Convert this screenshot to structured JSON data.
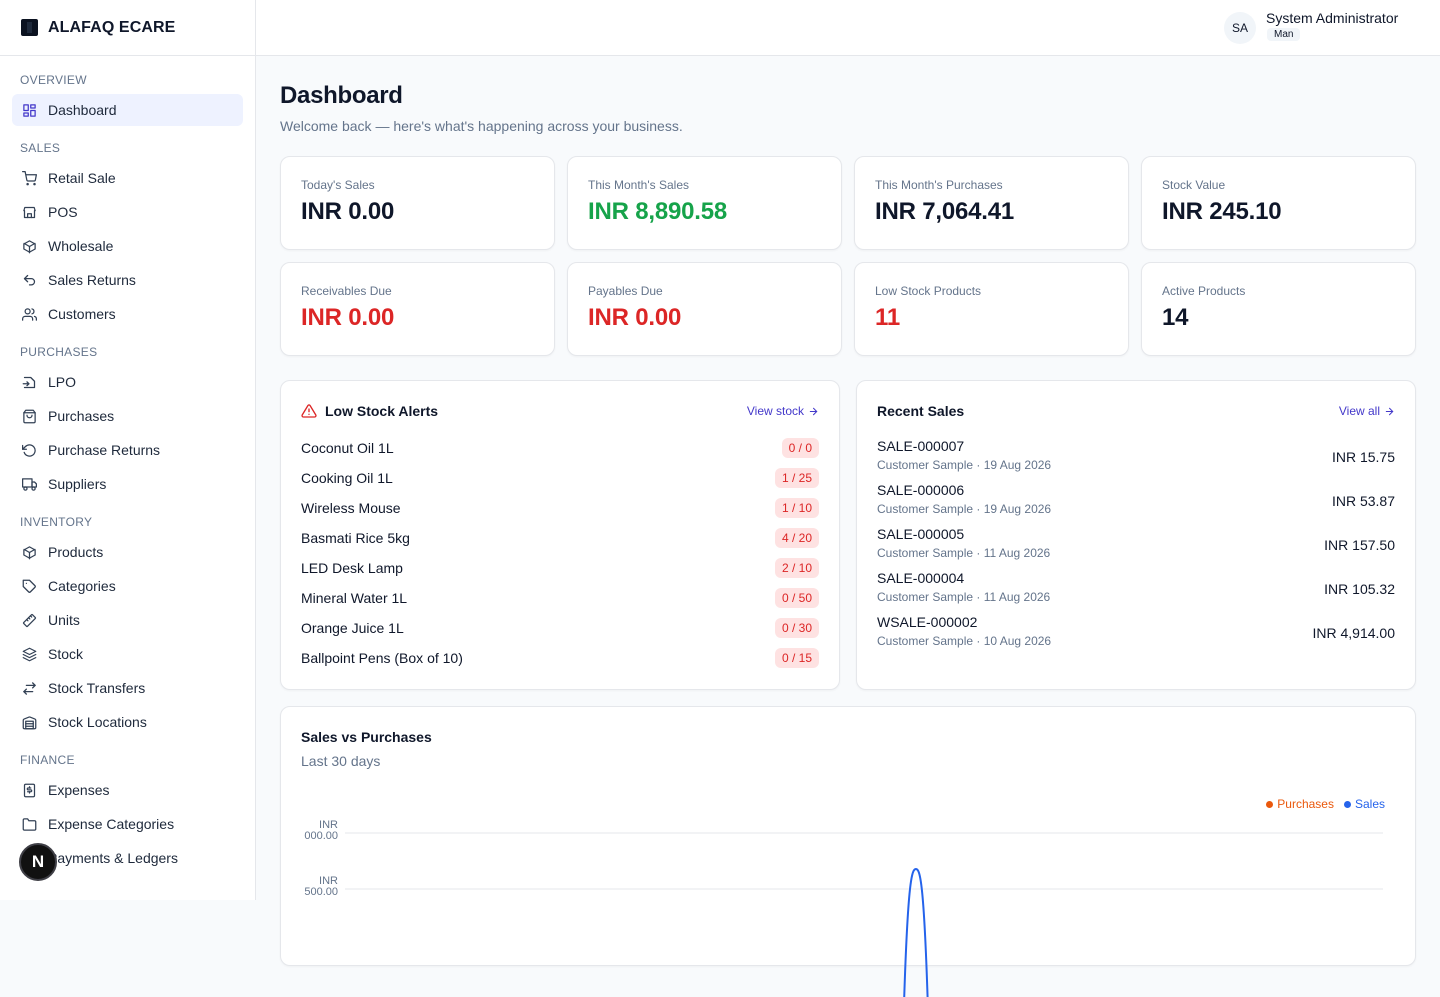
{
  "brand": {
    "name": "ALAFAQ ECARE"
  },
  "user": {
    "initials": "SA",
    "name": "System Administrator",
    "role": "Man"
  },
  "sidebar": {
    "sections": [
      {
        "title": "OVERVIEW",
        "items": [
          {
            "label": "Dashboard",
            "icon": "dashboard-icon",
            "active": true
          }
        ]
      },
      {
        "title": "SALES",
        "items": [
          {
            "label": "Retail Sale",
            "icon": "cart-icon"
          },
          {
            "label": "POS",
            "icon": "store-icon"
          },
          {
            "label": "Wholesale",
            "icon": "package-icon"
          },
          {
            "label": "Sales Returns",
            "icon": "undo-icon"
          },
          {
            "label": "Customers",
            "icon": "users-icon"
          }
        ]
      },
      {
        "title": "PURCHASES",
        "items": [
          {
            "label": "LPO",
            "icon": "file-import-icon"
          },
          {
            "label": "Purchases",
            "icon": "shopping-bag-icon"
          },
          {
            "label": "Purchase Returns",
            "icon": "rotate-ccw-icon"
          },
          {
            "label": "Suppliers",
            "icon": "truck-icon"
          }
        ]
      },
      {
        "title": "INVENTORY",
        "items": [
          {
            "label": "Products",
            "icon": "box-icon"
          },
          {
            "label": "Categories",
            "icon": "tag-icon"
          },
          {
            "label": "Units",
            "icon": "ruler-icon"
          },
          {
            "label": "Stock",
            "icon": "layers-icon"
          },
          {
            "label": "Stock Transfers",
            "icon": "transfer-icon"
          },
          {
            "label": "Stock Locations",
            "icon": "warehouse-icon"
          }
        ]
      },
      {
        "title": "FINANCE",
        "items": [
          {
            "label": "Expenses",
            "icon": "receipt-icon"
          },
          {
            "label": "Expense Categories",
            "icon": "folder-icon"
          },
          {
            "label": "Payments & Ledgers",
            "icon": "wallet-icon"
          }
        ]
      }
    ]
  },
  "page": {
    "title": "Dashboard",
    "subtitle": "Welcome back — here's what's happening across your business."
  },
  "stats": [
    {
      "label": "Today's Sales",
      "value": "INR 0.00",
      "color": "#0f172a"
    },
    {
      "label": "This Month's Sales",
      "value": "INR 8,890.58",
      "color": "#16a34a"
    },
    {
      "label": "This Month's Purchases",
      "value": "INR 7,064.41",
      "color": "#0f172a"
    },
    {
      "label": "Stock Value",
      "value": "INR 245.10",
      "color": "#0f172a"
    },
    {
      "label": "Receivables Due",
      "value": "INR 0.00",
      "color": "#dc2626"
    },
    {
      "label": "Payables Due",
      "value": "INR 0.00",
      "color": "#dc2626"
    },
    {
      "label": "Low Stock Products",
      "value": "11",
      "color": "#dc2626"
    },
    {
      "label": "Active Products",
      "value": "14",
      "color": "#0f172a"
    }
  ],
  "low_stock": {
    "title": "Low Stock Alerts",
    "link": "View stock",
    "items": [
      {
        "name": "Coconut Oil 1L",
        "qty": "0 / 0"
      },
      {
        "name": "Cooking Oil 1L",
        "qty": "1 / 25"
      },
      {
        "name": "Wireless Mouse",
        "qty": "1 / 10"
      },
      {
        "name": "Basmati Rice 5kg",
        "qty": "4 / 20"
      },
      {
        "name": "LED Desk Lamp",
        "qty": "2 / 10"
      },
      {
        "name": "Mineral Water 1L",
        "qty": "0 / 50"
      },
      {
        "name": "Orange Juice 1L",
        "qty": "0 / 30"
      },
      {
        "name": "Ballpoint Pens (Box of 10)",
        "qty": "0 / 15"
      }
    ]
  },
  "recent_sales": {
    "title": "Recent Sales",
    "link": "View all",
    "items": [
      {
        "no": "SALE-000007",
        "meta": "Customer Sample · 19 Aug 2026",
        "amount": "INR 15.75"
      },
      {
        "no": "SALE-000006",
        "meta": "Customer Sample · 19 Aug 2026",
        "amount": "INR 53.87"
      },
      {
        "no": "SALE-000005",
        "meta": "Customer Sample · 11 Aug 2026",
        "amount": "INR 157.50"
      },
      {
        "no": "SALE-000004",
        "meta": "Customer Sample · 11 Aug 2026",
        "amount": "INR 105.32"
      },
      {
        "no": "WSALE-000002",
        "meta": "Customer Sample · 10 Aug 2026",
        "amount": "INR 4,914.00"
      }
    ]
  },
  "chart_data": {
    "type": "line",
    "title": "Sales vs Purchases",
    "subtitle": "Last 30 days",
    "legend": "top-right",
    "series": [
      {
        "name": "Purchases",
        "color": "#ea580c"
      },
      {
        "name": "Sales",
        "color": "#2563eb"
      }
    ],
    "tick_labels": [
      {
        "prefix": "INR",
        "value": "000.00"
      },
      {
        "prefix": "INR",
        "value": "500.00"
      }
    ],
    "sales_peak_fraction": 0.55,
    "grid": true
  },
  "footer_badge": {
    "letter": "N"
  }
}
